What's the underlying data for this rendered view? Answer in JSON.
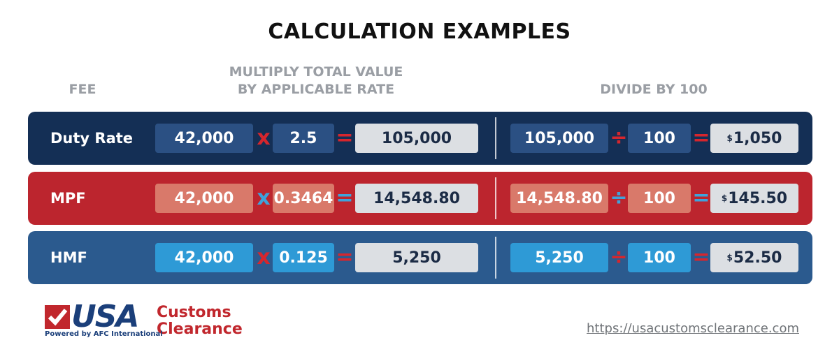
{
  "header": {
    "title": "CALCULATION EXAMPLES"
  },
  "columns": {
    "fee": "FEE",
    "multiply": [
      "MULTIPLY TOTAL VALUE",
      "BY APPLICABLE RATE"
    ],
    "divide": "DIVIDE BY 100"
  },
  "operators": {
    "multiply": "x",
    "divide": "÷",
    "equals": "="
  },
  "rows": [
    {
      "fee": "Duty Rate",
      "value": "42,000",
      "rate": "2.5",
      "product": "105,000",
      "dividend": "105,000",
      "divisor": "100",
      "currency": "$",
      "result": "1,050"
    },
    {
      "fee": "MPF",
      "value": "42,000",
      "rate": "0.3464",
      "product": "14,548.80",
      "dividend": "14,548.80",
      "divisor": "100",
      "currency": "$",
      "result": "145.50"
    },
    {
      "fee": "HMF",
      "value": "42,000",
      "rate": "0.125",
      "product": "5,250",
      "dividend": "5,250",
      "divisor": "100",
      "currency": "$",
      "result": "52.50"
    }
  ],
  "logo": {
    "brand": "USA",
    "line1": "Customs",
    "line2": "Clearance",
    "tagline": "Powered by AFC International"
  },
  "footer": {
    "url": "https://usacustomsclearance.com"
  }
}
